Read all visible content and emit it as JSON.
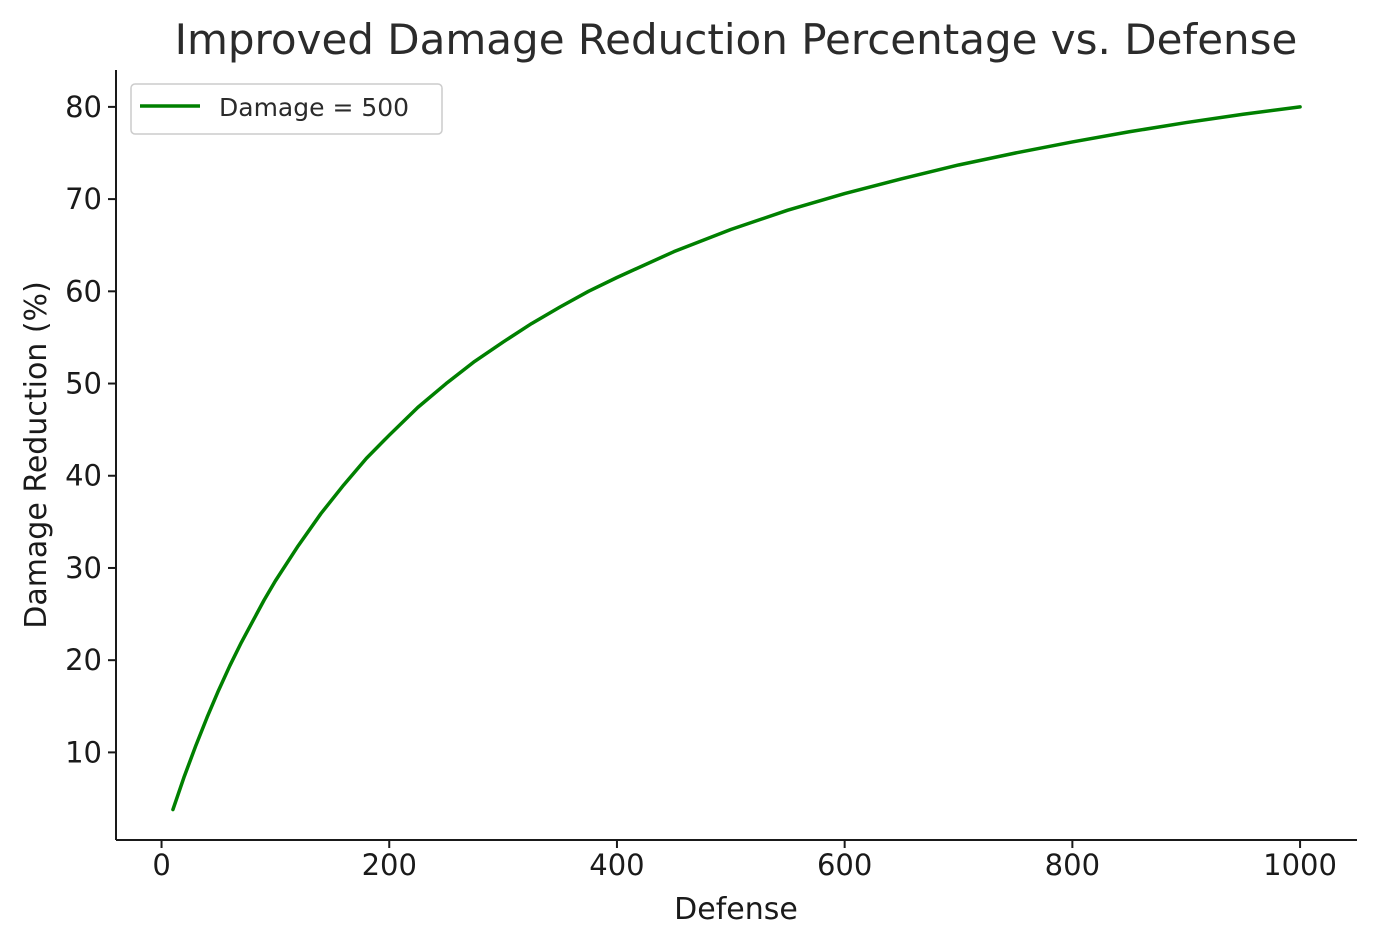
{
  "chart_data": {
    "type": "line",
    "title": "Improved Damage Reduction Percentage vs. Defense",
    "xlabel": "Defense",
    "ylabel": "Damage Reduction (%)",
    "xlim": [
      -40,
      1050
    ],
    "ylim": [
      0.5,
      84
    ],
    "xticks": [
      0,
      200,
      400,
      600,
      800,
      1000
    ],
    "yticks": [
      10,
      20,
      30,
      40,
      50,
      60,
      70,
      80
    ],
    "grid": false,
    "legend_position": "top-left",
    "series": [
      {
        "name": "Damage = 500",
        "color": "#008000",
        "x": [
          10,
          20,
          30,
          40,
          50,
          60,
          70,
          80,
          90,
          100,
          120,
          140,
          160,
          180,
          200,
          225,
          250,
          275,
          300,
          325,
          350,
          375,
          400,
          450,
          500,
          550,
          600,
          650,
          700,
          750,
          800,
          850,
          900,
          950,
          1000
        ],
        "y": [
          3.8,
          7.4,
          10.7,
          13.8,
          16.7,
          19.4,
          21.9,
          24.2,
          26.5,
          28.6,
          32.4,
          35.9,
          39.0,
          41.9,
          44.4,
          47.4,
          50.0,
          52.4,
          54.5,
          56.5,
          58.3,
          60.0,
          61.5,
          64.3,
          66.7,
          68.8,
          70.6,
          72.2,
          73.7,
          75.0,
          76.2,
          77.3,
          78.3,
          79.2,
          80.0
        ]
      }
    ]
  }
}
